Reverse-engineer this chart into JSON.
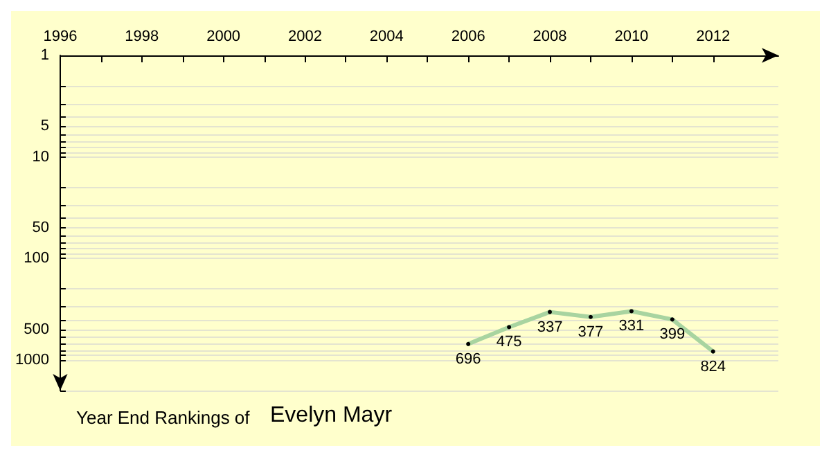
{
  "chart_data": {
    "type": "line",
    "title": "Year End Rankings of",
    "subtitle": "Evelyn Mayr",
    "x": [
      2006,
      2007,
      2008,
      2009,
      2010,
      2011,
      2012
    ],
    "series": [
      {
        "color": "#a8d4a0",
        "values": [
          696,
          475,
          337,
          377,
          331,
          399,
          824
        ]
      }
    ],
    "data_labels": true,
    "marker": "circle",
    "line_style": "solid",
    "log": "y",
    "grid": "y",
    "xlim": [
      1996,
      2013.6
    ],
    "xticks": [
      1996,
      {
        "value": 1997,
        "label": null
      },
      1998,
      {
        "value": 1999,
        "label": null
      },
      2000,
      {
        "value": 2001,
        "label": null
      },
      2002,
      {
        "value": 2003,
        "label": null
      },
      2004,
      {
        "value": 2005,
        "label": null
      },
      2006,
      {
        "value": 2007,
        "label": null
      },
      2008,
      {
        "value": 2009,
        "label": null
      },
      2010,
      {
        "value": 2011,
        "label": null
      },
      2012
    ],
    "ylim": [
      2000,
      1
    ],
    "yticks": [
      1,
      {
        "value": 2,
        "label": null
      },
      {
        "value": 3,
        "label": null
      },
      {
        "value": 4,
        "label": null
      },
      5,
      {
        "value": 6,
        "label": null
      },
      {
        "value": 7,
        "label": null
      },
      {
        "value": 8,
        "label": null
      },
      {
        "value": 9,
        "label": null
      },
      10,
      {
        "value": 20,
        "label": null
      },
      {
        "value": 30,
        "label": null
      },
      {
        "value": 40,
        "label": null
      },
      50,
      {
        "value": 60,
        "label": null
      },
      {
        "value": 70,
        "label": null
      },
      {
        "value": 80,
        "label": null
      },
      {
        "value": 90,
        "label": null
      },
      100,
      {
        "value": 200,
        "label": null
      },
      {
        "value": 300,
        "label": null
      },
      {
        "value": 400,
        "label": null
      },
      500,
      {
        "value": 600,
        "label": null
      },
      {
        "value": 700,
        "label": null
      },
      {
        "value": 800,
        "label": null
      },
      {
        "value": 900,
        "label": null
      },
      1000,
      {
        "value": 2000,
        "label": null
      }
    ]
  }
}
